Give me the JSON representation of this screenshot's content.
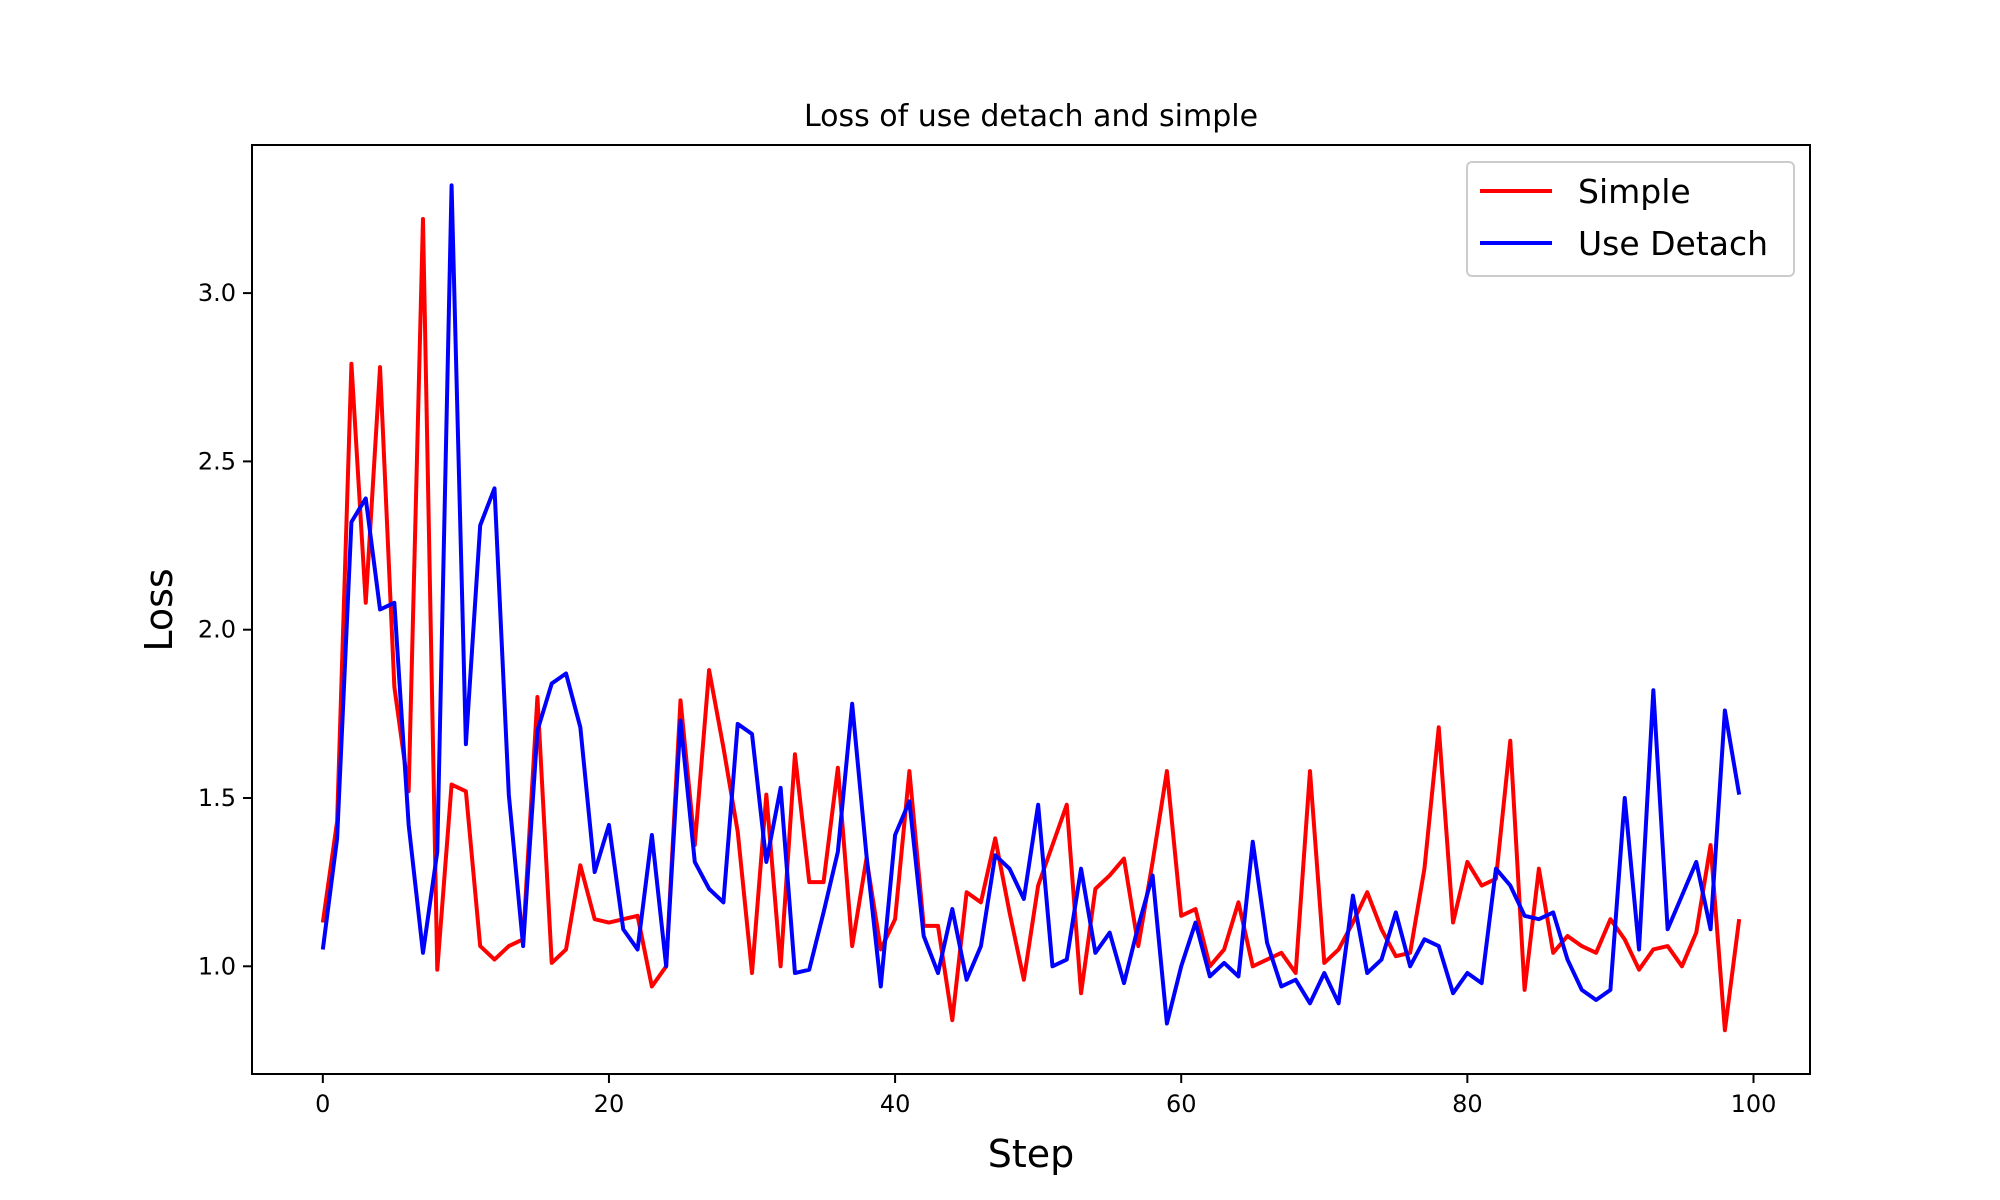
{
  "chart_data": {
    "type": "line",
    "title": "Loss of use detach and simple",
    "xlabel": "Step",
    "ylabel": "Loss",
    "xlim": [
      -4.95,
      103.95
    ],
    "ylim": [
      0.68,
      3.44
    ],
    "xticks": [
      0,
      20,
      40,
      60,
      80,
      100
    ],
    "yticks": [
      1.0,
      1.5,
      2.0,
      2.5,
      3.0
    ],
    "xtick_labels": [
      "0",
      "20",
      "40",
      "60",
      "80",
      "100"
    ],
    "ytick_labels": [
      "1.0",
      "1.5",
      "2.0",
      "2.5",
      "3.0"
    ],
    "grid": false,
    "legend_position": "top-right",
    "x": [
      0,
      1,
      2,
      3,
      4,
      5,
      6,
      7,
      8,
      9,
      10,
      11,
      12,
      13,
      14,
      15,
      16,
      17,
      18,
      19,
      20,
      21,
      22,
      23,
      24,
      25,
      26,
      27,
      28,
      29,
      30,
      31,
      32,
      33,
      34,
      35,
      36,
      37,
      38,
      39,
      40,
      41,
      42,
      43,
      44,
      45,
      46,
      47,
      48,
      49,
      50,
      51,
      52,
      53,
      54,
      55,
      56,
      57,
      58,
      59,
      60,
      61,
      62,
      63,
      64,
      65,
      66,
      67,
      68,
      69,
      70,
      71,
      72,
      73,
      74,
      75,
      76,
      77,
      78,
      79,
      80,
      81,
      82,
      83,
      84,
      85,
      86,
      87,
      88,
      89,
      90,
      91,
      92,
      93,
      94,
      95,
      96,
      97,
      98,
      99
    ],
    "series": [
      {
        "name": "Simple",
        "color": "#ff0000",
        "values": [
          1.13,
          1.43,
          2.79,
          2.08,
          2.78,
          1.83,
          1.52,
          3.22,
          0.99,
          1.54,
          1.52,
          1.06,
          1.02,
          1.06,
          1.08,
          1.8,
          1.01,
          1.05,
          1.3,
          1.14,
          1.13,
          1.14,
          1.15,
          0.94,
          1.0,
          1.79,
          1.36,
          1.88,
          1.65,
          1.4,
          0.98,
          1.51,
          1.0,
          1.63,
          1.25,
          1.25,
          1.59,
          1.06,
          1.32,
          1.05,
          1.14,
          1.58,
          1.12,
          1.12,
          0.84,
          1.22,
          1.19,
          1.38,
          1.16,
          0.96,
          1.24,
          1.36,
          1.48,
          0.92,
          1.23,
          1.27,
          1.32,
          1.06,
          1.31,
          1.58,
          1.15,
          1.17,
          1.0,
          1.05,
          1.19,
          1.0,
          1.02,
          1.04,
          0.98,
          1.58,
          1.01,
          1.05,
          1.13,
          1.22,
          1.11,
          1.03,
          1.04,
          1.29,
          1.71,
          1.13,
          1.31,
          1.24,
          1.26,
          1.67,
          0.93,
          1.29,
          1.04,
          1.09,
          1.06,
          1.04,
          1.14,
          1.08,
          0.99,
          1.05,
          1.06,
          1.0,
          1.1,
          1.36,
          0.81,
          1.14
        ]
      },
      {
        "name": "Use Detach",
        "color": "#0000ff",
        "values": [
          1.05,
          1.38,
          2.32,
          2.39,
          2.06,
          2.08,
          1.42,
          1.04,
          1.34,
          3.32,
          1.66,
          2.31,
          2.42,
          1.51,
          1.06,
          1.7,
          1.84,
          1.87,
          1.71,
          1.28,
          1.42,
          1.11,
          1.05,
          1.39,
          1.0,
          1.73,
          1.31,
          1.23,
          1.19,
          1.72,
          1.69,
          1.31,
          1.53,
          0.98,
          0.99,
          1.16,
          1.34,
          1.78,
          1.33,
          0.94,
          1.39,
          1.49,
          1.09,
          0.98,
          1.17,
          0.96,
          1.06,
          1.33,
          1.29,
          1.2,
          1.48,
          1.0,
          1.02,
          1.29,
          1.04,
          1.1,
          0.95,
          1.12,
          1.27,
          0.83,
          1.0,
          1.13,
          0.97,
          1.01,
          0.97,
          1.37,
          1.07,
          0.94,
          0.96,
          0.89,
          0.98,
          0.89,
          1.21,
          0.98,
          1.02,
          1.16,
          1.0,
          1.08,
          1.06,
          0.92,
          0.98,
          0.95,
          1.29,
          1.24,
          1.15,
          1.14,
          1.16,
          1.02,
          0.93,
          0.9,
          0.93,
          1.5,
          1.05,
          1.82,
          1.11,
          1.21,
          1.31,
          1.11,
          1.76,
          1.51
        ]
      }
    ]
  }
}
